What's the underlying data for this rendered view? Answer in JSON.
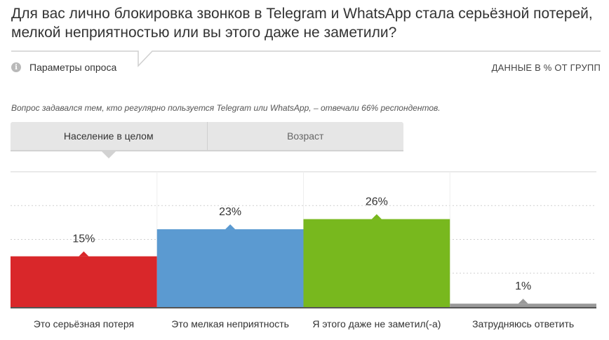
{
  "question": {
    "title": "Для вас лично блокировка звонков в Telegram и WhatsApp стала серьёзной потерей, мелкой неприятностью или вы этого даже не заметили?"
  },
  "toolbar": {
    "params_label": "Параметры опроса",
    "params_icon": "info-icon",
    "data_unit_label": "ДАННЫЕ В % ОТ ГРУПП"
  },
  "note": "Вопрос задавался тем, кто регулярно пользуется Telegram или WhatsApp, – отвечали 66% респондентов.",
  "tabs": [
    {
      "label": "Население в целом",
      "active": true
    },
    {
      "label": "Возраст",
      "active": false
    }
  ],
  "chart_data": {
    "type": "bar",
    "categories": [
      "Это серьёзная потеря",
      "Это мелкая неприятность",
      "Я этого даже не заметил(-а)",
      "Затрудняюсь ответить"
    ],
    "values": [
      15,
      23,
      26,
      1
    ],
    "value_labels": [
      "15%",
      "23%",
      "26%",
      "1%"
    ],
    "colors": [
      "#d9272a",
      "#5b9ad1",
      "#78b81e",
      "#999999"
    ],
    "ylim": [
      0,
      40
    ],
    "grid": true,
    "title": "",
    "xlabel": "",
    "ylabel": ""
  }
}
